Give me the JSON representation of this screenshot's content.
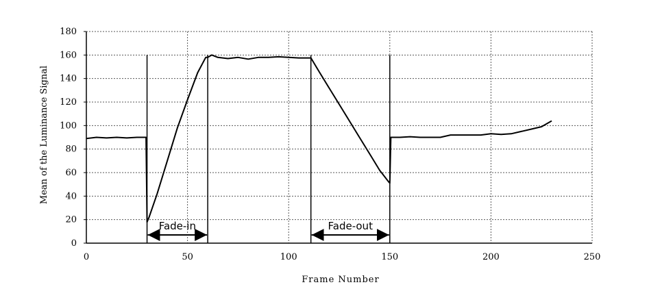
{
  "chart_data": {
    "type": "line",
    "title": "",
    "xlabel": "Frame Number",
    "ylabel": "Mean of the Luminance Signal",
    "xlim": [
      0,
      250
    ],
    "ylim": [
      0,
      180
    ],
    "x_ticks": [
      "0",
      "50",
      "100",
      "150",
      "200",
      "250"
    ],
    "y_ticks": [
      "0",
      "20",
      "40",
      "60",
      "80",
      "100",
      "120",
      "140",
      "160",
      "180"
    ],
    "grid": true,
    "legend": "none",
    "line_color": "#000000",
    "series": [
      {
        "x": [
          0,
          5,
          10,
          15,
          20,
          25,
          29.5,
          30,
          31,
          35,
          40,
          45,
          50,
          55,
          59,
          60,
          62,
          65,
          70,
          75,
          80,
          85,
          90,
          95,
          100,
          105,
          110,
          111,
          115,
          120,
          125,
          130,
          135,
          140,
          145,
          149.5,
          150,
          150.5,
          155,
          160,
          165,
          170,
          175,
          180,
          185,
          190,
          195,
          200,
          205,
          210,
          215,
          220,
          225,
          230
        ],
        "y": [
          89,
          90,
          89.5,
          90,
          89.5,
          90,
          90,
          18,
          22,
          42,
          70,
          98,
          122,
          145,
          158,
          158,
          160,
          158,
          157,
          158,
          156.5,
          158,
          158,
          158.5,
          158,
          157.5,
          157.5,
          157.5,
          146,
          132,
          118,
          104,
          90,
          76,
          62,
          52,
          51,
          90,
          90,
          90.5,
          90,
          90,
          90,
          92,
          92,
          92,
          92,
          93,
          92.5,
          93,
          95,
          97,
          99,
          104
        ]
      }
    ],
    "annotations": [
      {
        "label": "Fade-in",
        "x_start": 30,
        "x_end": 60,
        "y": 7
      },
      {
        "label": "Fade-out",
        "x_start": 111,
        "x_end": 150,
        "y": 7
      }
    ],
    "vertical_markers": [
      30,
      60,
      111,
      150
    ]
  }
}
